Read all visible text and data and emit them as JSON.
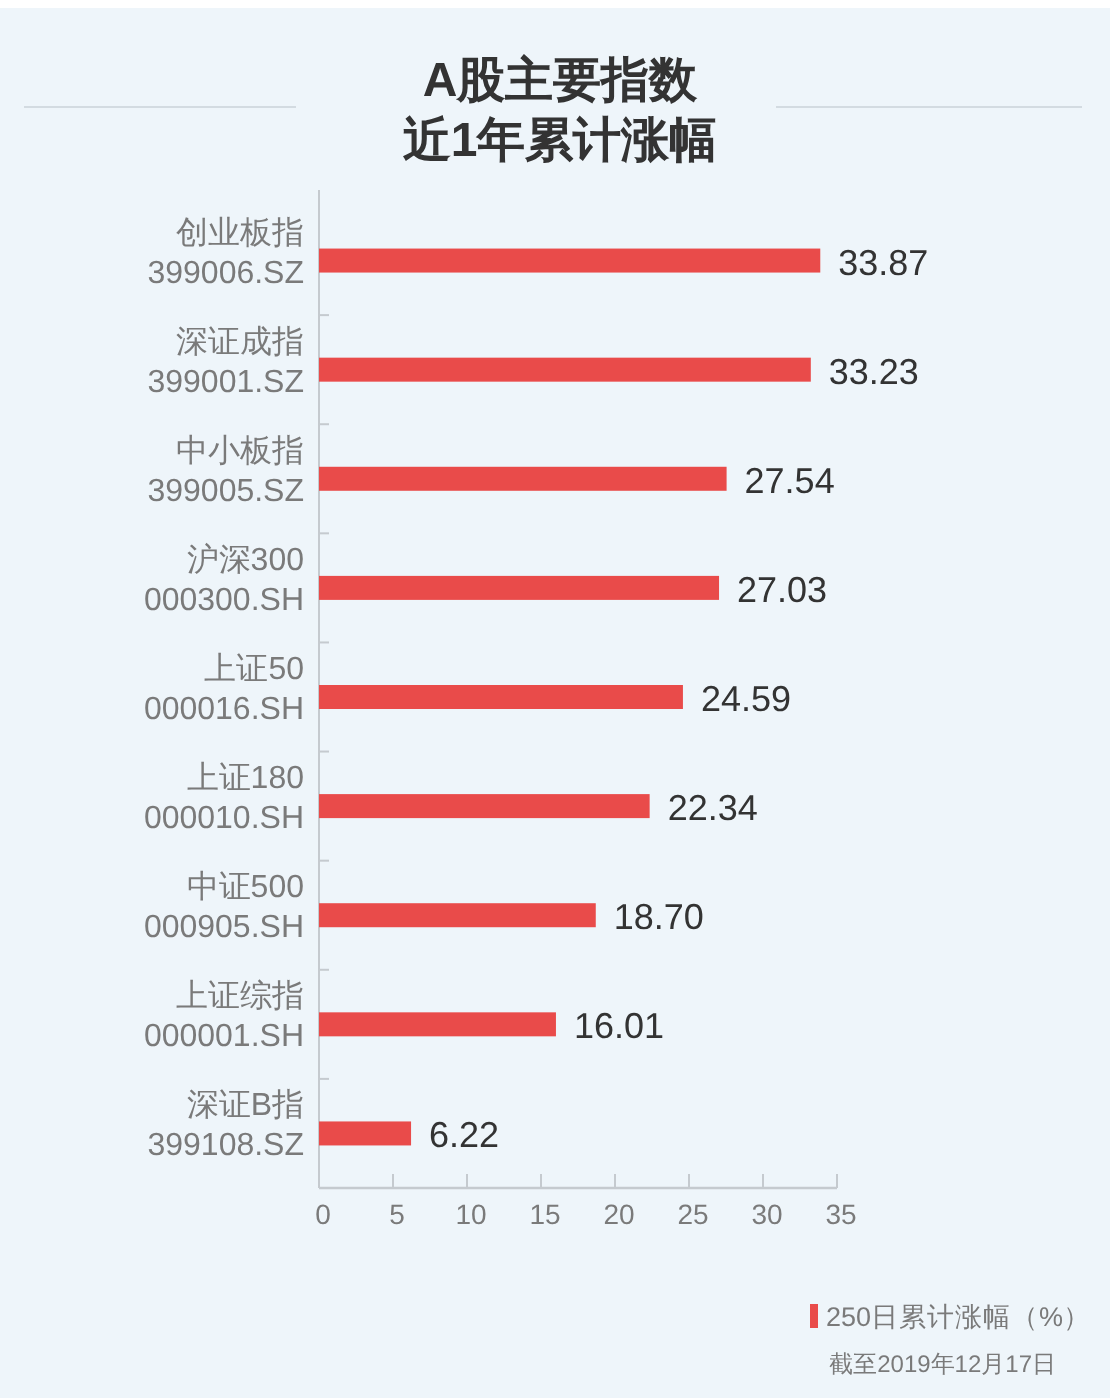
{
  "chart_data": {
    "type": "bar",
    "orientation": "horizontal",
    "title": "A股主要指数",
    "subtitle": "近1年累计涨幅",
    "categories": [
      "创业板指\n399006.SZ",
      "深证成指\n399001.SZ",
      "中小板指\n399005.SZ",
      "沪深300\n000300.SH",
      "上证50\n000016.SH",
      "上证180\n000010.SH",
      "中证500\n000905.SH",
      "上证综指\n000001.SH",
      "深证B指\n399108.SZ"
    ],
    "series": [
      {
        "name": "250日累计涨幅（%）",
        "color": "#e94b4a",
        "values": [
          33.87,
          33.23,
          27.54,
          27.03,
          24.59,
          22.34,
          18.7,
          16.01,
          6.22
        ],
        "value_labels": [
          "33.87",
          "33.23",
          "27.54",
          "27.03",
          "24.59",
          "22.34",
          "18.70",
          "16.01",
          "6.22"
        ]
      }
    ],
    "xlim": [
      0,
      35
    ],
    "xticks": [
      0,
      5,
      10,
      15,
      20,
      25,
      30,
      35
    ],
    "legend": "bottom right",
    "annotations": [
      "截至2019年12月17日"
    ]
  }
}
